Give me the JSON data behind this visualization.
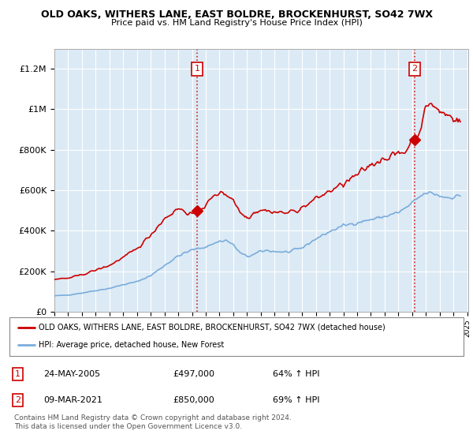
{
  "title": "OLD OAKS, WITHERS LANE, EAST BOLDRE, BROCKENHURST, SO42 7WX",
  "subtitle": "Price paid vs. HM Land Registry's House Price Index (HPI)",
  "ylim": [
    0,
    1300000
  ],
  "yticks": [
    0,
    200000,
    400000,
    600000,
    800000,
    1000000,
    1200000
  ],
  "ytick_labels": [
    "£0",
    "£200K",
    "£400K",
    "£600K",
    "£800K",
    "£1M",
    "£1.2M"
  ],
  "sale1_date": "24-MAY-2005",
  "sale1_price": 497000,
  "sale1_pct": "64% ↑ HPI",
  "sale2_date": "09-MAR-2021",
  "sale2_price": 850000,
  "sale2_pct": "69% ↑ HPI",
  "property_label": "OLD OAKS, WITHERS LANE, EAST BOLDRE, BROCKENHURST, SO42 7WX (detached house)",
  "hpi_label": "HPI: Average price, detached house, New Forest",
  "property_color": "#cc0000",
  "hpi_color": "#7aacdc",
  "sale_vline_color": "#cc0000",
  "copyright_text": "Contains HM Land Registry data © Crown copyright and database right 2024.\nThis data is licensed under the Open Government Licence v3.0.",
  "x_start_year": 1995,
  "x_end_year": 2025,
  "chart_bg_color": "#dceaf5",
  "background_color": "#ffffff",
  "grid_color": "#ffffff",
  "sale1_x": 2005.38,
  "sale2_x": 2021.17
}
